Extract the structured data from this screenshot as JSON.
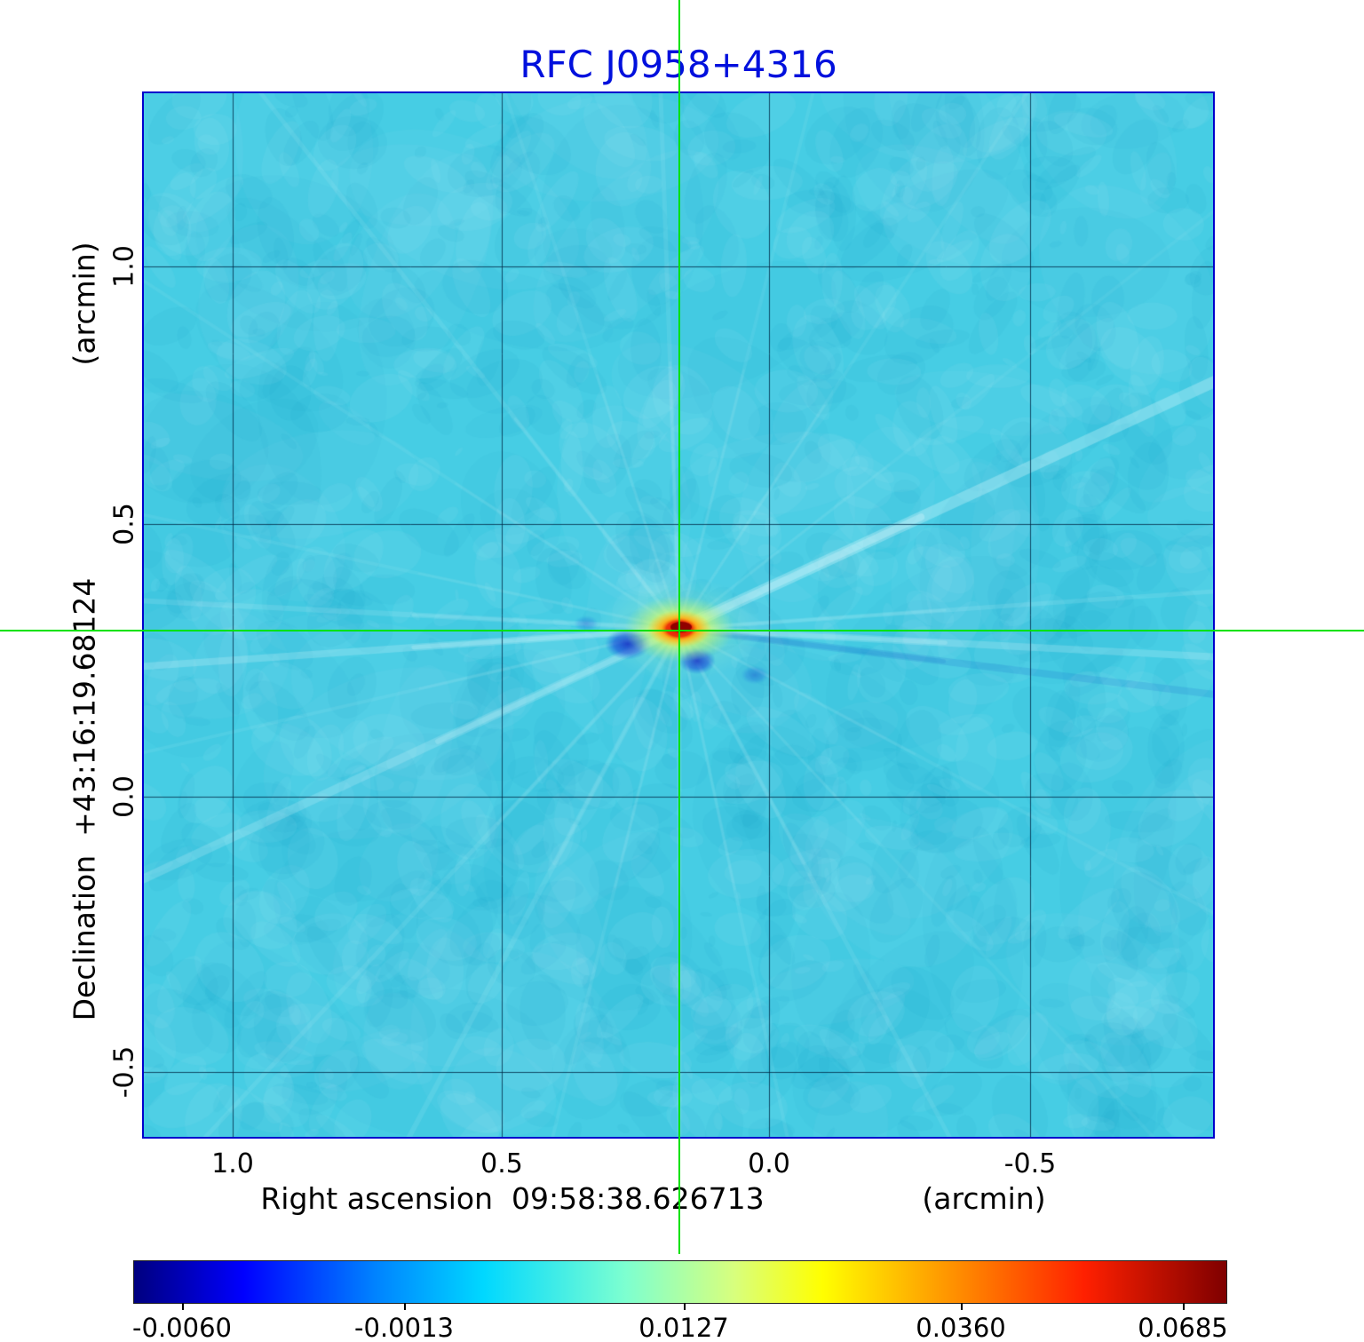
{
  "title": "RFC J0958+4316",
  "plot": {
    "x_axis": {
      "label": "Right ascension  09:58:38.626713",
      "unit": "(arcmin)",
      "ticks": [
        "1.0",
        "0.5",
        "0.0",
        "-0.5"
      ]
    },
    "y_axis": {
      "label": "Declination  +43:16:19.68124",
      "unit": "(arcmin)",
      "ticks": [
        "1.0",
        "0.5",
        "0.0",
        "-0.5"
      ]
    }
  },
  "colorbar": {
    "tick_labels": [
      "-0.0060",
      "-0.0013",
      "0.0127",
      "0.0360",
      "0.0685"
    ],
    "gradient": [
      "#00007f 0%",
      "#0000ff 10%",
      "#0082ff 22%",
      "#00d8ff 32%",
      "#7dffd0 45%",
      "#d8ff7d 55%",
      "#ffff00 63%",
      "#ff9100 75%",
      "#ff2000 87%",
      "#7f0000 100%"
    ]
  },
  "colors": {
    "title_blue": "#0010dd",
    "frame_blue": "#0000cc",
    "background_cyan": "#46cde4",
    "crosshair_green": "#00e200",
    "grid_dark": "rgba(0,40,70,0.8)"
  },
  "chart_data": {
    "type": "heatmap",
    "title": "RFC J0958+4316",
    "xlabel": "Right ascension 09:58:38.626713 (arcmin)",
    "ylabel": "Declination +43:16:19.68124 (arcmin)",
    "x_tick_values": [
      1.0,
      0.5,
      0.0,
      -0.5
    ],
    "y_tick_values": [
      1.0,
      0.5,
      0.0,
      -0.5
    ],
    "x_range_arcmin": [
      1.17,
      -0.84
    ],
    "y_range_arcmin": [
      -0.62,
      1.32
    ],
    "colorbar_tick_values": [
      -0.006,
      -0.0013,
      0.0127,
      0.036,
      0.0685
    ],
    "colormap": "jet",
    "grid": true,
    "background_level": 0.0,
    "peak": {
      "x_arcmin": 0.17,
      "y_arcmin": 0.3,
      "value": 0.0685
    },
    "crosshair_position_arcmin": {
      "x": 0.17,
      "y": 0.3
    },
    "features": "bright compact source at crosshair with yellow-orange halo, two deep-blue negative sidelobes beside it, faint light rays radiating across cyan background"
  }
}
